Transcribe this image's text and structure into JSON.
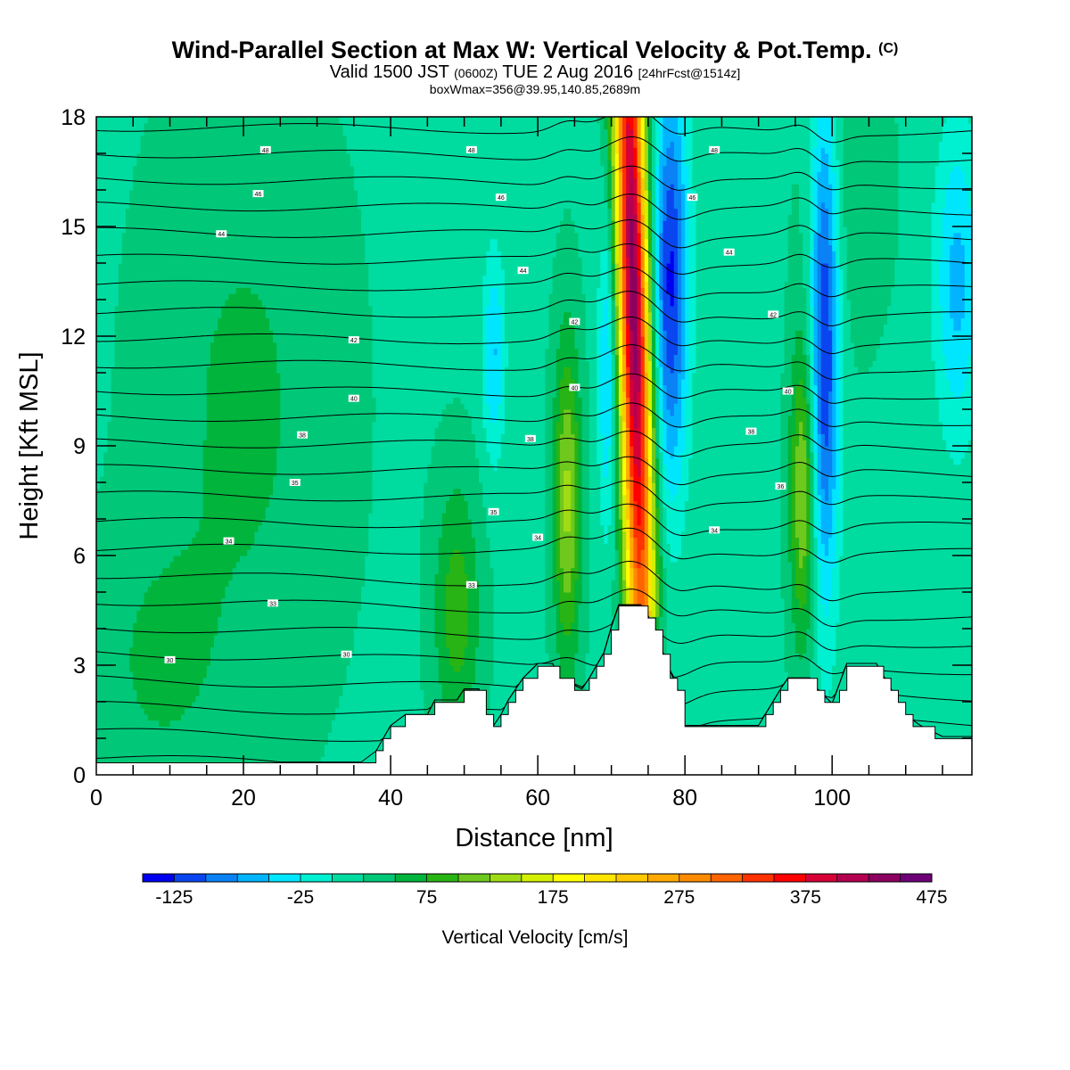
{
  "header": {
    "title_main": "Wind-Parallel Section at Max W: Vertical Velocity & Pot.Temp.",
    "title_mark": "(C)",
    "valid_a": "Valid 1500 JST ",
    "valid_b": "(0600Z)",
    "valid_c": " TUE 2 Aug 2016 ",
    "valid_d": "[24hrFcst@1514z]",
    "box_line": "boxWmax=356@39.95,140.85,2689m"
  },
  "chart_data": {
    "type": "heatmap",
    "xlabel": "Distance [nm]",
    "ylabel": "Height [Kft MSL]",
    "xlim": [
      0,
      119
    ],
    "ylim": [
      0,
      18
    ],
    "x_ticks": [
      0,
      20,
      40,
      60,
      80,
      100
    ],
    "y_ticks": [
      0,
      3,
      6,
      9,
      12,
      15,
      18
    ],
    "colorbar": {
      "label": "Vertical Velocity [cm/s]",
      "min": -150,
      "step": 25,
      "tick_labels": [
        -125,
        -25,
        75,
        175,
        275,
        375,
        475
      ],
      "colors": [
        "#0000f0",
        "#0a46f0",
        "#0a82f5",
        "#00b4ff",
        "#00e6ff",
        "#00f0d2",
        "#00dca0",
        "#00c878",
        "#00b43c",
        "#28b414",
        "#6ec81e",
        "#a0dc14",
        "#d2f000",
        "#ffff00",
        "#ffe600",
        "#ffc800",
        "#ffaa00",
        "#ff8c00",
        "#ff6400",
        "#ff3200",
        "#ff0000",
        "#d70037",
        "#b40050",
        "#8c005f",
        "#6e0078"
      ]
    },
    "updrafts": [
      {
        "x": 73.5,
        "peak_cm_s": 420
      },
      {
        "x": 64,
        "peak_cm_s": 110
      },
      {
        "x": 96,
        "peak_cm_s": 110
      },
      {
        "x": 49,
        "peak_cm_s": 70
      }
    ],
    "downdrafts": [
      {
        "x": 78,
        "min_cm_s": -125
      },
      {
        "x": 99,
        "min_cm_s": -125
      },
      {
        "x": 54,
        "min_cm_s": -60
      },
      {
        "x": 117,
        "min_cm_s": -60
      }
    ],
    "terrain_kft": [
      [
        0,
        0.3
      ],
      [
        36,
        0.3
      ],
      [
        38,
        0.6
      ],
      [
        40,
        1.3
      ],
      [
        42,
        1.6
      ],
      [
        45,
        1.6
      ],
      [
        46,
        2.0
      ],
      [
        49,
        2.0
      ],
      [
        50,
        2.3
      ],
      [
        52,
        2.3
      ],
      [
        53,
        1.6
      ],
      [
        54,
        1.3
      ],
      [
        55,
        1.6
      ],
      [
        56,
        2.0
      ],
      [
        58,
        2.6
      ],
      [
        60,
        3.0
      ],
      [
        62,
        3.0
      ],
      [
        63,
        2.6
      ],
      [
        66,
        2.3
      ],
      [
        67,
        2.6
      ],
      [
        69,
        3.3
      ],
      [
        70,
        4.0
      ],
      [
        71,
        4.6
      ],
      [
        74,
        4.6
      ],
      [
        75,
        4.3
      ],
      [
        77,
        3.3
      ],
      [
        79,
        2.3
      ],
      [
        80,
        1.3
      ],
      [
        90,
        1.3
      ],
      [
        93,
        2.3
      ],
      [
        94,
        2.6
      ],
      [
        97,
        2.6
      ],
      [
        98,
        2.3
      ],
      [
        100,
        1.9
      ],
      [
        102,
        3.0
      ],
      [
        106,
        3.0
      ],
      [
        108,
        2.3
      ],
      [
        110,
        1.6
      ],
      [
        112,
        1.3
      ],
      [
        115,
        1.0
      ],
      [
        119,
        1.0
      ]
    ],
    "theta_labels": [
      {
        "text": "30",
        "x": 10,
        "y": 3.15
      },
      {
        "text": "30",
        "x": 34,
        "y": 3.3
      },
      {
        "text": "33",
        "x": 24,
        "y": 4.7
      },
      {
        "text": "33",
        "x": 51,
        "y": 5.2
      },
      {
        "text": "34",
        "x": 18,
        "y": 6.4
      },
      {
        "text": "34",
        "x": 60,
        "y": 6.5
      },
      {
        "text": "34",
        "x": 84,
        "y": 6.7
      },
      {
        "text": "35",
        "x": 54,
        "y": 7.2
      },
      {
        "text": "35",
        "x": 27,
        "y": 8.0
      },
      {
        "text": "36",
        "x": 93,
        "y": 7.9
      },
      {
        "text": "38",
        "x": 28,
        "y": 9.3
      },
      {
        "text": "38",
        "x": 59,
        "y": 9.2
      },
      {
        "text": "38",
        "x": 89,
        "y": 9.4
      },
      {
        "text": "40",
        "x": 35,
        "y": 10.3
      },
      {
        "text": "40",
        "x": 65,
        "y": 10.6
      },
      {
        "text": "40",
        "x": 94,
        "y": 10.5
      },
      {
        "text": "42",
        "x": 35,
        "y": 11.9
      },
      {
        "text": "42",
        "x": 65,
        "y": 12.4
      },
      {
        "text": "42",
        "x": 92,
        "y": 12.6
      },
      {
        "text": "44",
        "x": 17,
        "y": 14.8
      },
      {
        "text": "44",
        "x": 58,
        "y": 13.8
      },
      {
        "text": "44",
        "x": 86,
        "y": 14.3
      },
      {
        "text": "46",
        "x": 22,
        "y": 15.9
      },
      {
        "text": "46",
        "x": 55,
        "y": 15.8
      },
      {
        "text": "46",
        "x": 81,
        "y": 15.8
      },
      {
        "text": "48",
        "x": 23,
        "y": 17.1
      },
      {
        "text": "48",
        "x": 51,
        "y": 17.1
      },
      {
        "text": "48",
        "x": 84,
        "y": 17.1
      }
    ]
  }
}
